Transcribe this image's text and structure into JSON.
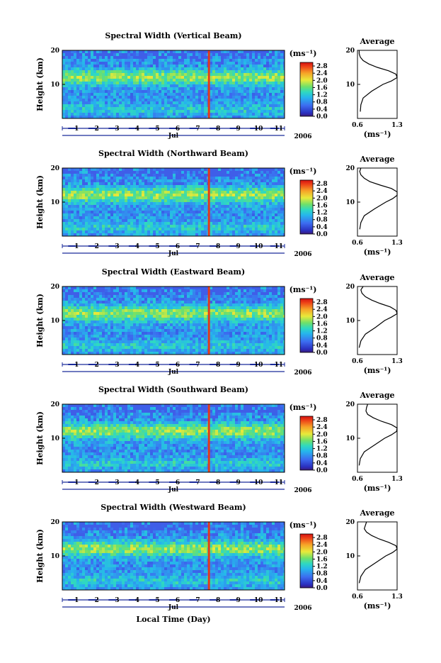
{
  "shared": {
    "ylabel": "Height (km)",
    "yticks": [
      10,
      20
    ],
    "ylim": [
      0,
      20
    ],
    "xticks": [
      "1",
      "2",
      "3",
      "4",
      "5",
      "6",
      "7",
      "8",
      "9",
      "10",
      "11"
    ],
    "xaxis_month": "Jul",
    "xaxis_year": "2006",
    "xlabel": "Local Time (Day)",
    "colorbar_unit": "(ms⁻¹)",
    "colorbar_ticks": [
      "0.0",
      "0.4",
      "0.8",
      "1.2",
      "1.6",
      "2.0",
      "2.4",
      "2.8"
    ],
    "colorbar_range": [
      0.0,
      3.0
    ],
    "avg_title": "Average",
    "avg_xticks": [
      "0.6",
      "1.3"
    ],
    "avg_xlabel": "(ms⁻¹)",
    "avg_xlim": [
      0.6,
      1.3
    ]
  },
  "chart_data": [
    {
      "type": "heatmap",
      "title": "Spectral Width (Vertical Beam)",
      "average_profile": {
        "height_km": [
          2,
          4,
          6,
          8,
          10,
          11,
          12,
          13,
          14,
          15,
          16,
          17,
          18,
          19,
          20
        ],
        "value": [
          0.65,
          0.66,
          0.7,
          0.85,
          1.05,
          1.2,
          1.3,
          1.28,
          1.15,
          0.95,
          0.8,
          0.7,
          0.65,
          0.63,
          0.63
        ]
      }
    },
    {
      "type": "heatmap",
      "title": "Spectral Width (Northward Beam)",
      "average_profile": {
        "height_km": [
          2,
          4,
          6,
          8,
          10,
          11,
          12,
          13,
          14,
          15,
          16,
          17,
          18,
          19,
          20
        ],
        "value": [
          0.64,
          0.66,
          0.72,
          0.9,
          1.1,
          1.22,
          1.3,
          1.3,
          1.2,
          1.0,
          0.82,
          0.72,
          0.66,
          0.64,
          0.66
        ]
      }
    },
    {
      "type": "heatmap",
      "title": "Spectral Width (Eastward Beam)",
      "average_profile": {
        "height_km": [
          2,
          4,
          6,
          8,
          10,
          11,
          12,
          13,
          14,
          15,
          16,
          17,
          18,
          19,
          20
        ],
        "value": [
          0.63,
          0.66,
          0.74,
          0.92,
          1.08,
          1.2,
          1.3,
          1.28,
          1.18,
          1.0,
          0.85,
          0.74,
          0.68,
          0.66,
          0.7
        ]
      }
    },
    {
      "type": "heatmap",
      "title": "Spectral Width (Southward Beam)",
      "average_profile": {
        "height_km": [
          2,
          4,
          6,
          8,
          10,
          11,
          12,
          13,
          14,
          15,
          16,
          17,
          18,
          19,
          20
        ],
        "value": [
          0.63,
          0.65,
          0.72,
          0.9,
          1.08,
          1.2,
          1.29,
          1.3,
          1.2,
          1.02,
          0.88,
          0.78,
          0.75,
          0.76,
          0.78
        ]
      }
    },
    {
      "type": "heatmap",
      "title": "Spectral Width (Westward Beam)",
      "average_profile": {
        "height_km": [
          2,
          4,
          6,
          8,
          10,
          11,
          12,
          13,
          14,
          15,
          16,
          17,
          18,
          19,
          20
        ],
        "value": [
          0.63,
          0.66,
          0.74,
          0.92,
          1.1,
          1.22,
          1.3,
          1.28,
          1.15,
          0.98,
          0.85,
          0.76,
          0.72,
          0.74,
          0.76
        ]
      }
    }
  ]
}
